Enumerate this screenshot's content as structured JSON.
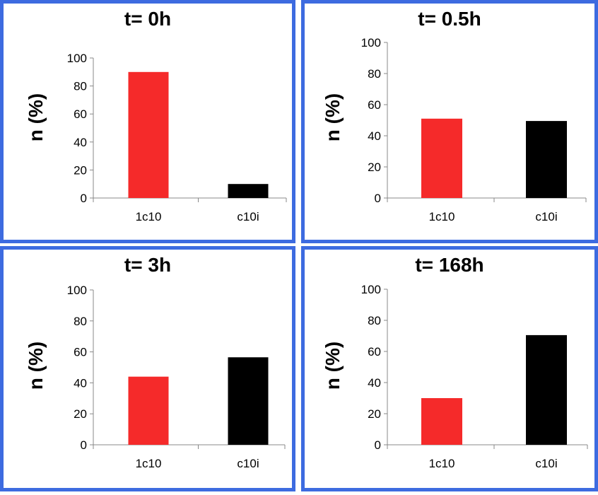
{
  "colors": {
    "border": "#3d6be0",
    "series_1c10": "#f52a2a",
    "series_c10i": "#000000"
  },
  "chart_data": [
    {
      "type": "bar",
      "title": "t= 0h",
      "ylabel": "n (%)",
      "xlabel": "",
      "categories": [
        "1c10",
        "c10i"
      ],
      "values": [
        90,
        10
      ],
      "ylim": [
        0,
        100
      ],
      "yticks": [
        "0",
        "20",
        "40",
        "60",
        "80",
        "100"
      ],
      "grid": false
    },
    {
      "type": "bar",
      "title": "t= 0.5h",
      "ylabel": "n (%)",
      "xlabel": "",
      "categories": [
        "1c10",
        "c10i"
      ],
      "values": [
        51,
        49.5
      ],
      "ylim": [
        0,
        100
      ],
      "yticks": [
        "0",
        "20",
        "40",
        "60",
        "80",
        "100"
      ],
      "grid": false
    },
    {
      "type": "bar",
      "title": "t= 3h",
      "ylabel": "n (%)",
      "xlabel": "",
      "categories": [
        "1c10",
        "c10i"
      ],
      "values": [
        44,
        56.5
      ],
      "ylim": [
        0,
        100
      ],
      "yticks": [
        "0",
        "20",
        "40",
        "60",
        "80",
        "100"
      ],
      "grid": false
    },
    {
      "type": "bar",
      "title": "t= 168h",
      "ylabel": "n (%)",
      "xlabel": "",
      "categories": [
        "1c10",
        "c10i"
      ],
      "values": [
        30,
        70.5
      ],
      "ylim": [
        0,
        100
      ],
      "yticks": [
        "0",
        "20",
        "40",
        "60",
        "80",
        "100"
      ],
      "grid": false
    }
  ]
}
